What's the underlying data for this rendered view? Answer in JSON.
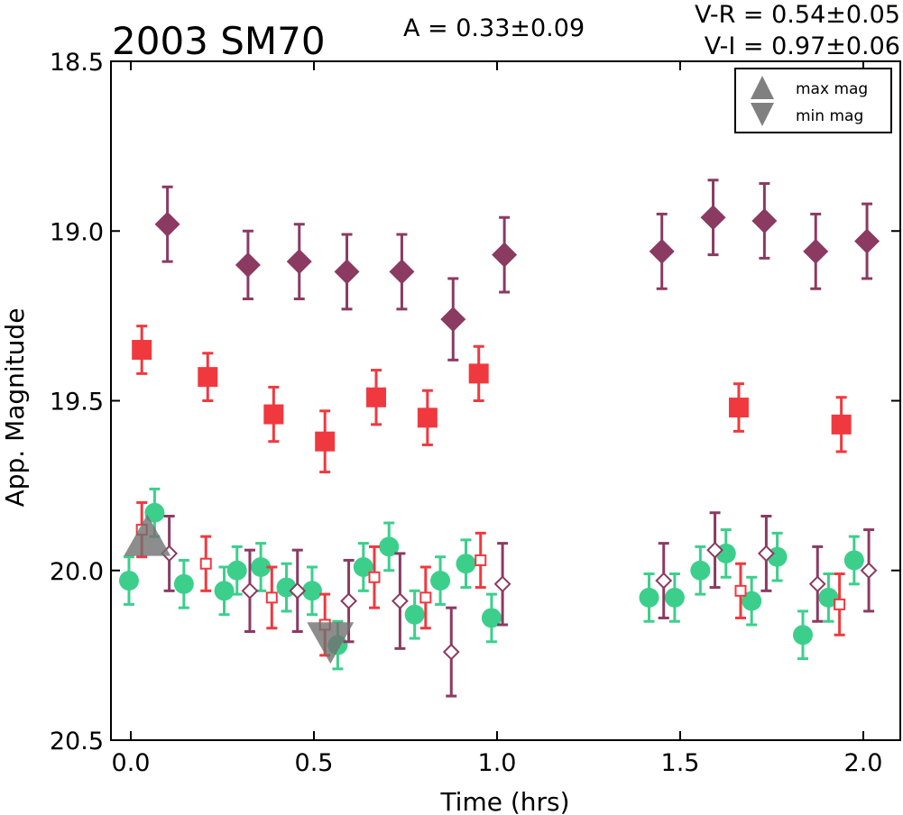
{
  "chart_data": {
    "type": "scatter",
    "title": "2003 SM70",
    "annotations": {
      "amplitude": "A  = 0.33±0.09",
      "v_r": "V-R = 0.54±0.05",
      "v_i": "V-I  = 0.97±0.06"
    },
    "xlabel": "Time (hrs)",
    "ylabel": "App. Magnitude",
    "xlim": [
      -0.05,
      2.1
    ],
    "ylim": [
      20.5,
      18.5
    ],
    "y_inverted": true,
    "xticks": [
      "0.0",
      "0.5",
      "1.0",
      "1.5",
      "2.0"
    ],
    "yticks": [
      "18.5",
      "19.0",
      "19.5",
      "20.0",
      "20.5"
    ],
    "grid": false,
    "legend": {
      "location": "top-right",
      "entries": [
        {
          "label": "max mag",
          "marker": "triangle-up",
          "color": "#808080"
        },
        {
          "label": "min mag",
          "marker": "triangle-down",
          "color": "#808080"
        }
      ]
    },
    "series": [
      {
        "marker": "filled-diamond",
        "color": "#8B3A62",
        "x": [
          0.1,
          0.32,
          0.46,
          0.59,
          0.74,
          0.88,
          1.02,
          1.45,
          1.59,
          1.73,
          1.87,
          2.01
        ],
        "y": [
          18.98,
          19.1,
          19.09,
          19.12,
          19.12,
          19.26,
          19.07,
          19.06,
          18.96,
          18.97,
          19.06,
          19.03
        ],
        "err": [
          0.11,
          0.1,
          0.11,
          0.11,
          0.11,
          0.12,
          0.11,
          0.11,
          0.11,
          0.11,
          0.11,
          0.11
        ]
      },
      {
        "marker": "filled-square",
        "color": "#F0393F",
        "x": [
          0.03,
          0.21,
          0.39,
          0.53,
          0.67,
          0.81,
          0.95,
          1.66,
          1.94
        ],
        "y": [
          19.35,
          19.43,
          19.54,
          19.62,
          19.49,
          19.55,
          19.42,
          19.52,
          19.57
        ],
        "err": [
          0.07,
          0.07,
          0.08,
          0.09,
          0.08,
          0.08,
          0.08,
          0.07,
          0.08
        ]
      },
      {
        "marker": "filled-circle",
        "color": "#3CCF8C",
        "x": [
          -0.005,
          0.065,
          0.145,
          0.255,
          0.29,
          0.355,
          0.425,
          0.495,
          0.565,
          0.635,
          0.705,
          0.775,
          0.845,
          0.915,
          0.985,
          1.415,
          1.485,
          1.555,
          1.625,
          1.695,
          1.765,
          1.835,
          1.905,
          1.975
        ],
        "y": [
          20.03,
          19.83,
          20.04,
          20.06,
          20.0,
          19.99,
          20.05,
          20.06,
          20.22,
          19.99,
          19.93,
          20.13,
          20.03,
          19.98,
          20.14,
          20.08,
          20.08,
          20.0,
          19.95,
          20.09,
          19.96,
          20.19,
          20.08,
          19.97
        ],
        "err": [
          0.07,
          0.07,
          0.07,
          0.07,
          0.07,
          0.07,
          0.07,
          0.07,
          0.07,
          0.07,
          0.07,
          0.07,
          0.07,
          0.07,
          0.07,
          0.07,
          0.07,
          0.07,
          0.07,
          0.07,
          0.07,
          0.07,
          0.07,
          0.07
        ]
      },
      {
        "marker": "open-diamond",
        "color": "#8B3A62",
        "x": [
          0.105,
          0.325,
          0.455,
          0.595,
          0.735,
          0.875,
          1.015,
          1.455,
          1.595,
          1.735,
          1.875,
          2.015
        ],
        "y": [
          19.95,
          20.06,
          20.06,
          20.09,
          20.09,
          20.24,
          20.04,
          20.03,
          19.94,
          19.95,
          20.04,
          20.0
        ],
        "err": [
          0.11,
          0.12,
          0.12,
          0.12,
          0.14,
          0.13,
          0.12,
          0.11,
          0.11,
          0.11,
          0.11,
          0.12
        ]
      },
      {
        "marker": "open-square",
        "color": "#F0393F",
        "x": [
          0.03,
          0.205,
          0.385,
          0.53,
          0.665,
          0.805,
          0.955,
          1.665,
          1.935
        ],
        "y": [
          19.88,
          19.98,
          20.08,
          20.16,
          20.02,
          20.08,
          19.97,
          20.06,
          20.1
        ],
        "err": [
          0.08,
          0.08,
          0.09,
          0.09,
          0.09,
          0.09,
          0.08,
          0.08,
          0.09
        ]
      }
    ],
    "extrema_markers": [
      {
        "kind": "max mag",
        "x": 0.045,
        "y": 19.92
      },
      {
        "kind": "min mag",
        "x": 0.545,
        "y": 20.19
      }
    ]
  }
}
